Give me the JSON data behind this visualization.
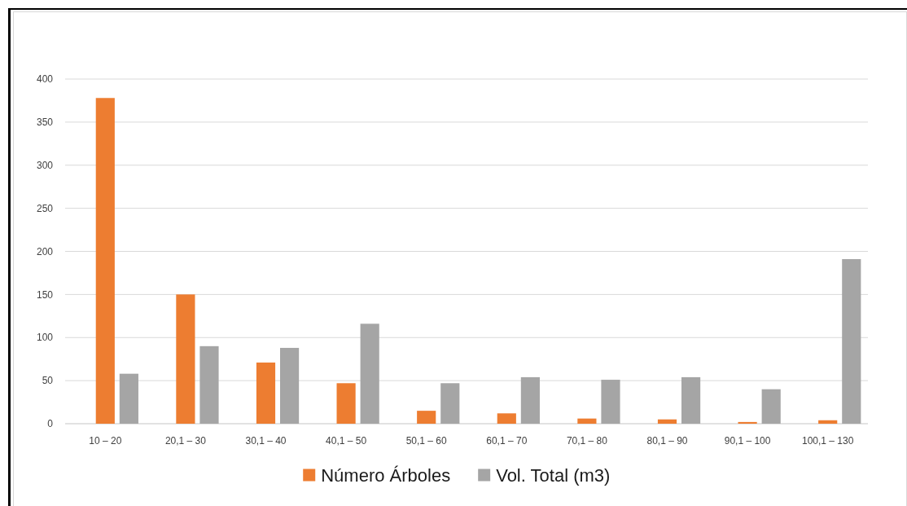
{
  "chart_data": {
    "type": "bar",
    "categories": [
      "10 – 20",
      "20,1 – 30",
      "30,1 – 40",
      "40,1 – 50",
      "50,1 – 60",
      "60,1 – 70",
      "70,1 – 80",
      "80,1 – 90",
      "90,1 – 100",
      "100,1 – 130"
    ],
    "series": [
      {
        "name": "Número Árboles",
        "color": "#ed7d31",
        "values": [
          378,
          150,
          71,
          47,
          15,
          12,
          6,
          5,
          2,
          4
        ]
      },
      {
        "name": "Vol. Total (m3)",
        "color": "#a5a5a5",
        "values": [
          58,
          90,
          88,
          116,
          47,
          54,
          51,
          54,
          40,
          191
        ]
      }
    ],
    "ylim": [
      0,
      400
    ],
    "yticks": [
      0,
      50,
      100,
      150,
      200,
      250,
      300,
      350,
      400
    ],
    "grid": "y",
    "legend": "bottom"
  }
}
